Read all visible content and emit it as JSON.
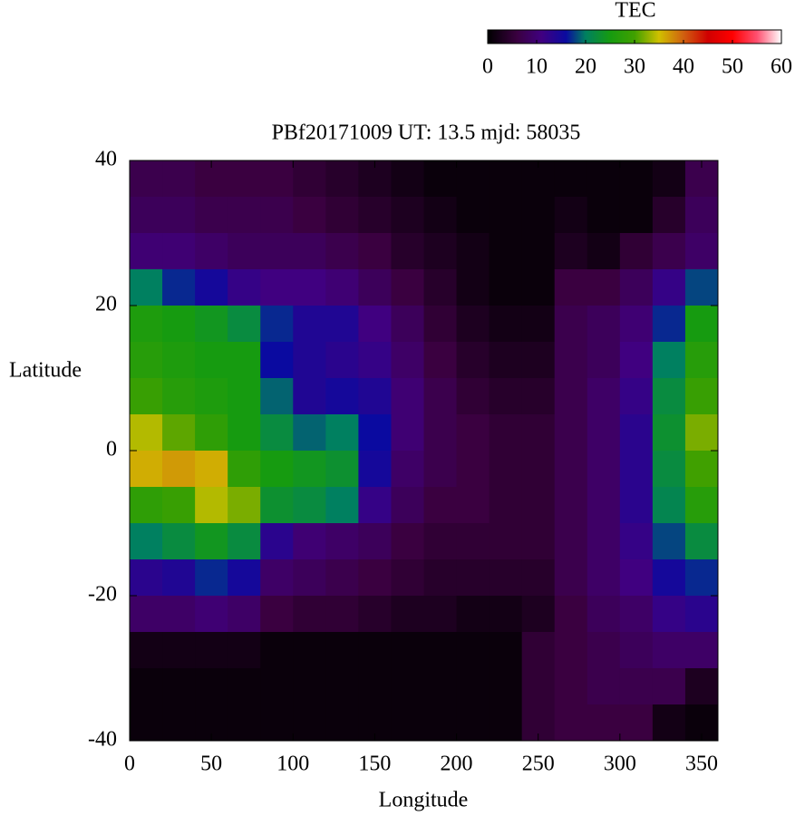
{
  "chart_data": {
    "type": "heatmap",
    "title": "PBf20171009  UT: 13.5  mjd: 58035",
    "xlabel": "Longitude",
    "ylabel": "Latitude",
    "x": [
      10,
      30,
      50,
      70,
      90,
      110,
      130,
      150,
      170,
      190,
      210,
      230,
      250,
      270,
      290,
      310,
      330,
      350
    ],
    "y": [
      37.5,
      32.5,
      27.5,
      22.5,
      17.5,
      12.5,
      7.5,
      2.5,
      -2.5,
      -7.5,
      -12.5,
      -17.5,
      -22.5,
      -27.5,
      -32.5,
      -37.5
    ],
    "values": [
      [
        7,
        7,
        6,
        6,
        6,
        5,
        4,
        3,
        2,
        1,
        1,
        1,
        1,
        1,
        1,
        1,
        2,
        7
      ],
      [
        8,
        8,
        7,
        7,
        7,
        6,
        5,
        4,
        3,
        2,
        1,
        1,
        1,
        2,
        1,
        1,
        4,
        8
      ],
      [
        10,
        10,
        9,
        8,
        8,
        8,
        7,
        6,
        4,
        3,
        2,
        1,
        1,
        3,
        2,
        5,
        7,
        9
      ],
      [
        20,
        17,
        15,
        12,
        11,
        11,
        10,
        8,
        6,
        4,
        2,
        1,
        1,
        6,
        6,
        8,
        12,
        18
      ],
      [
        26,
        25,
        24,
        22,
        17,
        14,
        14,
        11,
        8,
        5,
        3,
        2,
        2,
        7,
        8,
        10,
        17,
        25
      ],
      [
        27,
        26,
        25,
        25,
        16,
        14,
        13,
        12,
        9,
        6,
        4,
        3,
        3,
        7,
        8,
        11,
        20,
        27
      ],
      [
        29,
        27,
        26,
        25,
        19,
        14,
        15,
        14,
        10,
        7,
        5,
        4,
        4,
        7,
        9,
        12,
        22,
        29
      ],
      [
        34,
        31,
        28,
        25,
        22,
        19,
        20,
        16,
        10,
        7,
        6,
        5,
        5,
        7,
        9,
        13,
        23,
        32
      ],
      [
        36,
        37,
        36,
        28,
        25,
        24,
        23,
        15,
        9,
        7,
        6,
        5,
        5,
        7,
        9,
        13,
        22,
        30
      ],
      [
        28,
        29,
        34,
        32,
        23,
        22,
        20,
        12,
        8,
        6,
        6,
        5,
        5,
        7,
        9,
        13,
        21,
        27
      ],
      [
        20,
        22,
        24,
        22,
        13,
        10,
        9,
        8,
        6,
        5,
        5,
        5,
        5,
        7,
        9,
        12,
        18,
        22
      ],
      [
        13,
        14,
        17,
        15,
        9,
        8,
        7,
        6,
        5,
        4,
        4,
        4,
        4,
        7,
        9,
        11,
        15,
        17
      ],
      [
        9,
        9,
        10,
        9,
        6,
        5,
        5,
        4,
        3,
        3,
        2,
        2,
        3,
        6,
        8,
        9,
        12,
        13
      ],
      [
        2,
        2,
        2,
        2,
        1,
        1,
        1,
        1,
        1,
        1,
        1,
        1,
        5,
        6,
        7,
        8,
        9,
        9
      ],
      [
        1,
        1,
        1,
        1,
        1,
        1,
        1,
        1,
        1,
        1,
        1,
        1,
        5,
        6,
        7,
        7,
        7,
        3
      ],
      [
        1,
        1,
        1,
        1,
        1,
        1,
        1,
        1,
        1,
        1,
        1,
        1,
        5,
        6,
        6,
        6,
        2,
        1
      ]
    ],
    "xlim": [
      0,
      360
    ],
    "xticks": [
      0,
      50,
      100,
      150,
      200,
      250,
      300,
      350
    ],
    "ylim": [
      -40,
      40
    ],
    "yticks": [
      -40,
      -20,
      0,
      20,
      40
    ],
    "colorbar": {
      "label": "TEC",
      "lim": [
        0,
        60
      ],
      "ticks": [
        0,
        10,
        20,
        30,
        40,
        50,
        60
      ],
      "stops": [
        [
          0,
          "#000000"
        ],
        [
          6,
          "#3a0040"
        ],
        [
          11,
          "#400080"
        ],
        [
          16,
          "#0a0aa0"
        ],
        [
          20,
          "#008060"
        ],
        [
          25,
          "#169b10"
        ],
        [
          30,
          "#40a000"
        ],
        [
          35,
          "#d0c000"
        ],
        [
          40,
          "#d06010"
        ],
        [
          45,
          "#d00000"
        ],
        [
          50,
          "#ff0000"
        ],
        [
          55,
          "#ff5070"
        ],
        [
          60,
          "#ffffff"
        ]
      ]
    }
  }
}
